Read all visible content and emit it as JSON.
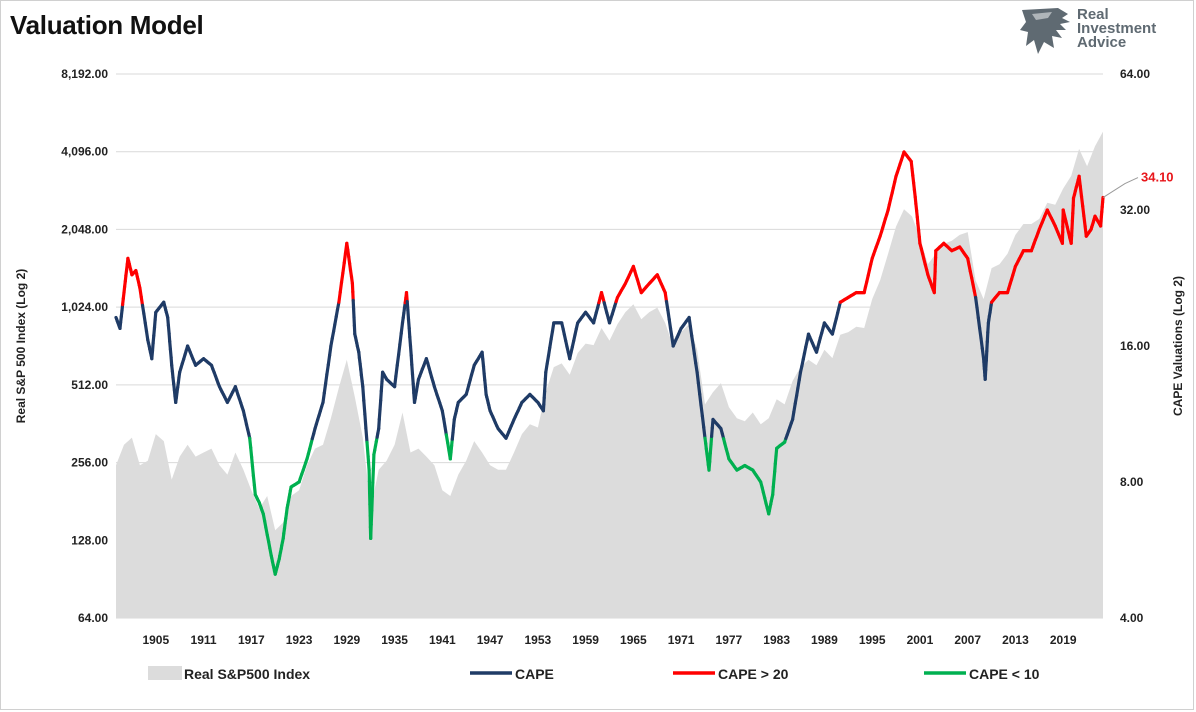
{
  "header": {
    "title": "Valuation Model",
    "logo_lines": [
      "Real",
      "Investment",
      "Advice"
    ]
  },
  "colors": {
    "index_fill": "#dcdcdc",
    "cape": "#1f3b66",
    "cape_high": "#ff0000",
    "cape_low": "#00b050",
    "grid": "#d9d9d9",
    "callout": "#e8161b"
  },
  "chart_data": {
    "type": "area+line",
    "title": "Valuation Model",
    "left_axis": {
      "label": "Real S&P 500 Index (Log 2)",
      "scale": "log2",
      "range": [
        64,
        8192
      ],
      "ticks": [
        "8,192.00",
        "4,096.00",
        "2,048.00",
        "1,024.00",
        "512.00",
        "256.00",
        "128.00",
        "64.00"
      ],
      "tick_values": [
        8192,
        4096,
        2048,
        1024,
        512,
        256,
        128,
        64
      ]
    },
    "right_axis": {
      "label": "CAPE Valuations (Log 2)",
      "scale": "log2",
      "range": [
        4,
        64
      ],
      "ticks": [
        "64.00",
        "32.00",
        "16.00",
        "8.00",
        "4.00"
      ],
      "tick_values": [
        64,
        32,
        16,
        8,
        4
      ]
    },
    "x_axis": {
      "range": [
        1900,
        2024
      ],
      "ticks": [
        "1905",
        "1911",
        "1917",
        "1923",
        "1929",
        "1935",
        "1941",
        "1947",
        "1953",
        "1959",
        "1965",
        "1971",
        "1977",
        "1983",
        "1989",
        "1995",
        "2001",
        "2007",
        "2013",
        "2019"
      ],
      "tick_values": [
        1905,
        1911,
        1917,
        1923,
        1929,
        1935,
        1941,
        1947,
        1953,
        1959,
        1965,
        1971,
        1977,
        1983,
        1989,
        1995,
        2001,
        2007,
        2013,
        2019
      ]
    },
    "thresholds": {
      "high": 20,
      "low": 10
    },
    "last_value_label": "34.10",
    "legend": [
      "Real S&P500 Index",
      "CAPE",
      "CAPE > 20",
      "CAPE < 10"
    ],
    "series": [
      {
        "name": "Real S&P500 Index",
        "axis": "left",
        "x": [
          1900,
          1901,
          1902,
          1903,
          1904,
          1905,
          1906,
          1907,
          1908,
          1909,
          1910,
          1911,
          1912,
          1913,
          1914,
          1915,
          1916,
          1917,
          1918,
          1919,
          1920,
          1921,
          1922,
          1923,
          1924,
          1925,
          1926,
          1927,
          1928,
          1929,
          1930,
          1931,
          1932,
          1933,
          1934,
          1935,
          1936,
          1937,
          1938,
          1939,
          1940,
          1941,
          1942,
          1943,
          1944,
          1945,
          1946,
          1947,
          1948,
          1949,
          1950,
          1951,
          1952,
          1953,
          1954,
          1955,
          1956,
          1957,
          1958,
          1959,
          1960,
          1961,
          1962,
          1963,
          1964,
          1965,
          1966,
          1967,
          1968,
          1969,
          1970,
          1971,
          1972,
          1973,
          1974,
          1975,
          1976,
          1977,
          1978,
          1979,
          1980,
          1981,
          1982,
          1983,
          1984,
          1985,
          1986,
          1987,
          1988,
          1989,
          1990,
          1991,
          1992,
          1993,
          1994,
          1995,
          1996,
          1997,
          1998,
          1999,
          2000,
          2001,
          2002,
          2003,
          2004,
          2005,
          2006,
          2007,
          2008,
          2009,
          2010,
          2011,
          2012,
          2013,
          2014,
          2015,
          2016,
          2017,
          2018,
          2019,
          2020,
          2021,
          2022,
          2023,
          2024
        ],
        "values": [
          250,
          300,
          320,
          250,
          260,
          330,
          310,
          220,
          270,
          300,
          270,
          280,
          290,
          250,
          230,
          280,
          240,
          200,
          170,
          190,
          140,
          150,
          190,
          200,
          250,
          290,
          300,
          380,
          500,
          640,
          460,
          320,
          170,
          240,
          260,
          300,
          400,
          280,
          290,
          270,
          250,
          200,
          190,
          230,
          260,
          310,
          280,
          250,
          240,
          240,
          280,
          330,
          360,
          350,
          480,
          600,
          620,
          560,
          680,
          740,
          730,
          850,
          760,
          880,
          980,
          1050,
          920,
          980,
          1020,
          890,
          720,
          820,
          880,
          700,
          430,
          480,
          520,
          420,
          380,
          370,
          400,
          360,
          380,
          450,
          430,
          530,
          600,
          640,
          610,
          700,
          650,
          800,
          820,
          860,
          850,
          1100,
          1300,
          1650,
          2100,
          2450,
          2300,
          1900,
          1500,
          1650,
          1800,
          1850,
          1950,
          2000,
          1300,
          1100,
          1450,
          1500,
          1650,
          1950,
          2150,
          2150,
          2250,
          2600,
          2550,
          2950,
          3300,
          4200,
          3600,
          4300,
          4900
        ]
      },
      {
        "name": "CAPE",
        "axis": "right",
        "x": [
          1900,
          1900.5,
          1901,
          1901.5,
          1902,
          1902.5,
          1903,
          1904,
          1904.5,
          1905,
          1906,
          1906.5,
          1907,
          1907.5,
          1908,
          1909,
          1910,
          1911,
          1912,
          1913,
          1914,
          1915,
          1916,
          1916.8,
          1917.5,
          1918,
          1918.5,
          1919.5,
          1920,
          1920.5,
          1921,
          1921.5,
          1922,
          1923,
          1924,
          1925,
          1926,
          1927,
          1928,
          1929,
          1929.7,
          1930,
          1930.5,
          1931,
          1931.8,
          1932,
          1932.4,
          1933,
          1933.5,
          1934,
          1935,
          1936,
          1936.5,
          1937,
          1937.5,
          1938,
          1939,
          1940,
          1941,
          1942,
          1942.5,
          1943,
          1944,
          1945,
          1946,
          1946.5,
          1947,
          1948,
          1949,
          1950,
          1951,
          1952,
          1953,
          1953.7,
          1954,
          1955,
          1956,
          1957,
          1958,
          1959,
          1960,
          1961,
          1962,
          1963,
          1964,
          1965,
          1966,
          1967,
          1968,
          1969,
          1970,
          1971,
          1972,
          1973,
          1974,
          1974.5,
          1975,
          1976,
          1977,
          1978,
          1979,
          1980,
          1981,
          1982,
          1982.5,
          1983,
          1984,
          1985,
          1986,
          1987,
          1988,
          1989,
          1990,
          1991,
          1992,
          1993,
          1994,
          1995,
          1996,
          1997,
          1998,
          1999,
          1999.9,
          2000.5,
          2001,
          2002,
          2002.8,
          2003,
          2004,
          2005,
          2006,
          2007,
          2008,
          2009,
          2009.2,
          2009.6,
          2010,
          2011,
          2012,
          2013,
          2014,
          2015,
          2016,
          2017,
          2018,
          2018.9,
          2019,
          2020,
          2020.3,
          2021,
          2021.9,
          2022.5,
          2023,
          2023.7,
          2024
        ],
        "values": [
          18.5,
          17.5,
          21.0,
          25.0,
          23.0,
          23.5,
          21.5,
          16.5,
          15.0,
          19.0,
          20.0,
          18.5,
          14.5,
          12.0,
          14.0,
          16.0,
          14.5,
          15.0,
          14.5,
          13.0,
          12.0,
          13.0,
          11.5,
          10.0,
          7.5,
          7.2,
          6.8,
          5.5,
          5.0,
          5.4,
          6.0,
          7.0,
          7.8,
          8.0,
          9.0,
          10.5,
          12.0,
          16.0,
          20.0,
          27.0,
          22.0,
          17.0,
          15.5,
          13.0,
          8.5,
          6.0,
          9.2,
          10.5,
          14.0,
          13.5,
          13.0,
          18.0,
          21.0,
          16.0,
          12.0,
          13.5,
          15.0,
          13.0,
          11.5,
          9.0,
          11.0,
          12.0,
          12.5,
          14.5,
          15.5,
          12.5,
          11.5,
          10.5,
          10.0,
          11.0,
          12.0,
          12.5,
          12.0,
          11.5,
          14.0,
          18.0,
          18.0,
          15.0,
          18.0,
          19.0,
          18.0,
          21.0,
          18.0,
          20.5,
          22.0,
          24.0,
          21.0,
          22.0,
          23.0,
          21.0,
          16.0,
          17.5,
          18.5,
          14.0,
          10.0,
          8.5,
          11.0,
          10.5,
          9.0,
          8.5,
          8.7,
          8.5,
          8.0,
          6.8,
          7.5,
          9.5,
          9.8,
          11.0,
          14.0,
          17.0,
          15.5,
          18.0,
          17.0,
          20.0,
          20.5,
          21.0,
          21.0,
          25.0,
          28.0,
          32.0,
          38.0,
          43.0,
          41.0,
          33.0,
          27.0,
          23.0,
          21.0,
          26.0,
          27.0,
          26.0,
          26.5,
          25.0,
          20.5,
          15.0,
          13.5,
          18.0,
          20.0,
          21.0,
          21.0,
          24.0,
          26.0,
          26.0,
          29.0,
          32.0,
          29.5,
          27.0,
          32.0,
          27.0,
          34.0,
          38.0,
          28.0,
          29.0,
          31.0,
          29.5,
          34.1
        ]
      }
    ]
  }
}
